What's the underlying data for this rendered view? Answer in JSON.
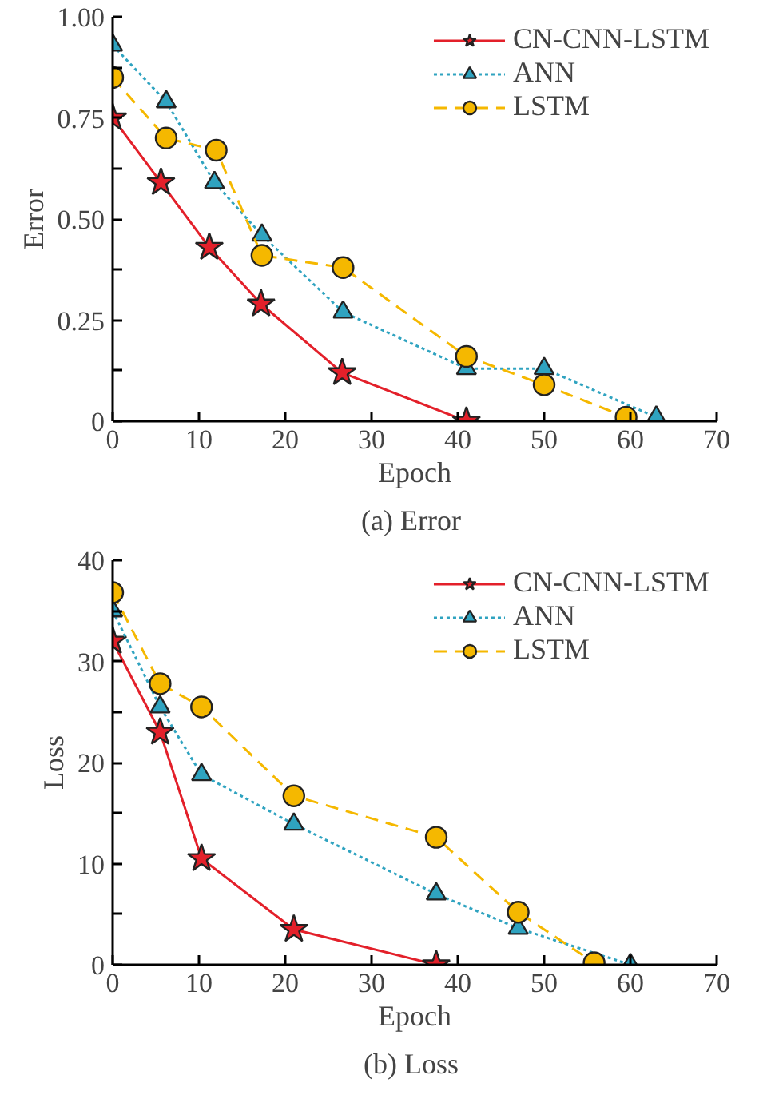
{
  "chart_data": [
    {
      "type": "line",
      "title": "(a)  Error",
      "xlabel": "Epoch",
      "ylabel": "Error",
      "xlim": [
        0,
        70
      ],
      "ylim": [
        0,
        1
      ],
      "xticks": [
        0,
        10,
        20,
        30,
        40,
        50,
        60,
        70
      ],
      "yticks": [
        0,
        {
          "value": 0.125,
          "label": null
        },
        {
          "value": 0.25,
          "label": "0.25"
        },
        {
          "value": 0.375,
          "label": null
        },
        {
          "value": 0.5,
          "label": "0.50"
        },
        {
          "value": 0.625,
          "label": null
        },
        {
          "value": 0.75,
          "label": "0.75"
        },
        {
          "value": 0.875,
          "label": null
        },
        {
          "value": 1,
          "label": "1.00"
        }
      ],
      "grid": false,
      "legend": "top right",
      "series": [
        {
          "name": "CN-CNN-LSTM",
          "color": "#e3202a",
          "marker": "star",
          "line_style": "solid",
          "x": [
            0,
            5.6,
            11.2,
            17.2,
            26.6,
            41
          ],
          "values": [
            0.75,
            0.59,
            0.43,
            0.29,
            0.12,
            0.0
          ]
        },
        {
          "name": "ANN",
          "color": "#2fa3c0",
          "marker": "triangle",
          "line_style": "dotted",
          "x": [
            0,
            6.2,
            11.8,
            17.3,
            26.7,
            41,
            50,
            63
          ],
          "values": [
            0.93,
            0.79,
            0.59,
            0.46,
            0.27,
            0.13,
            0.13,
            0.01
          ]
        },
        {
          "name": "LSTM",
          "color": "#f5b800",
          "marker": "circle",
          "line_style": "dashed",
          "x": [
            0,
            6.2,
            12,
            17.3,
            26.7,
            41,
            50,
            59.5
          ],
          "values": [
            0.85,
            0.7,
            0.67,
            0.41,
            0.38,
            0.16,
            0.09,
            0.01
          ]
        }
      ]
    },
    {
      "type": "line",
      "title": "(b)  Loss",
      "xlabel": "Epoch",
      "ylabel": "Loss",
      "xlim": [
        0,
        70
      ],
      "ylim": [
        0,
        40
      ],
      "xticks": [
        0,
        10,
        20,
        30,
        40,
        50,
        60,
        70
      ],
      "yticks": [
        0,
        {
          "value": 5,
          "label": null
        },
        10,
        {
          "value": 15,
          "label": null
        },
        20,
        {
          "value": 25,
          "label": null
        },
        30,
        {
          "value": 35,
          "label": null
        },
        40
      ],
      "grid": false,
      "legend": "top right",
      "series": [
        {
          "name": "CN-CNN-LSTM",
          "color": "#e3202a",
          "marker": "star",
          "line_style": "solid",
          "x": [
            0,
            5.5,
            10.3,
            21,
            37.5
          ],
          "values": [
            32,
            23,
            10.5,
            3.5,
            0
          ]
        },
        {
          "name": "ANN",
          "color": "#2fa3c0",
          "marker": "triangle",
          "line_style": "dotted",
          "x": [
            0,
            5.5,
            10.3,
            21,
            37.5,
            47,
            60
          ],
          "values": [
            35,
            25.5,
            18.8,
            13.9,
            7,
            3.6,
            0
          ]
        },
        {
          "name": "LSTM",
          "color": "#f5b800",
          "marker": "circle",
          "line_style": "dashed",
          "x": [
            0,
            5.5,
            10.3,
            21,
            37.5,
            47,
            55.8
          ],
          "values": [
            36.8,
            27.8,
            25.5,
            16.7,
            12.6,
            5.2,
            0.2
          ]
        }
      ]
    }
  ]
}
